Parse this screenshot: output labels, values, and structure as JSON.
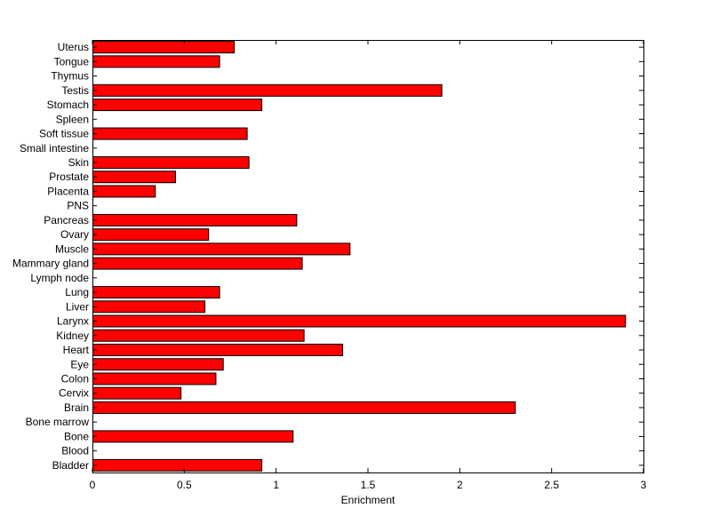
{
  "chart_data": {
    "type": "bar",
    "orientation": "horizontal",
    "title": "",
    "xlabel": "Enrichment",
    "ylabel": "",
    "xlim": [
      0,
      3
    ],
    "xticks": [
      "0",
      "0.5",
      "1",
      "1.5",
      "2",
      "2.5",
      "3"
    ],
    "grid": false,
    "legend": "none",
    "bar_color": "#ff0000",
    "bar_edge_color": "#000000",
    "categories": [
      "Bladder",
      "Blood",
      "Bone",
      "Bone marrow",
      "Brain",
      "Cervix",
      "Colon",
      "Eye",
      "Heart",
      "Kidney",
      "Larynx",
      "Liver",
      "Lung",
      "Lymph node",
      "Mammary gland",
      "Muscle",
      "Ovary",
      "Pancreas",
      "PNS",
      "Placenta",
      "Prostate",
      "Skin",
      "Small intestine",
      "Soft tissue",
      "Spleen",
      "Stomach",
      "Testis",
      "Thymus",
      "Tongue",
      "Uterus"
    ],
    "values": [
      0.92,
      0,
      1.09,
      0,
      2.3,
      0.48,
      0.67,
      0.71,
      1.36,
      1.15,
      2.9,
      0.61,
      0.69,
      0,
      1.14,
      1.4,
      0.63,
      1.11,
      0,
      0.34,
      0.45,
      0.85,
      0,
      0.84,
      0,
      0.92,
      1.9,
      0,
      0.69,
      0.77
    ]
  }
}
